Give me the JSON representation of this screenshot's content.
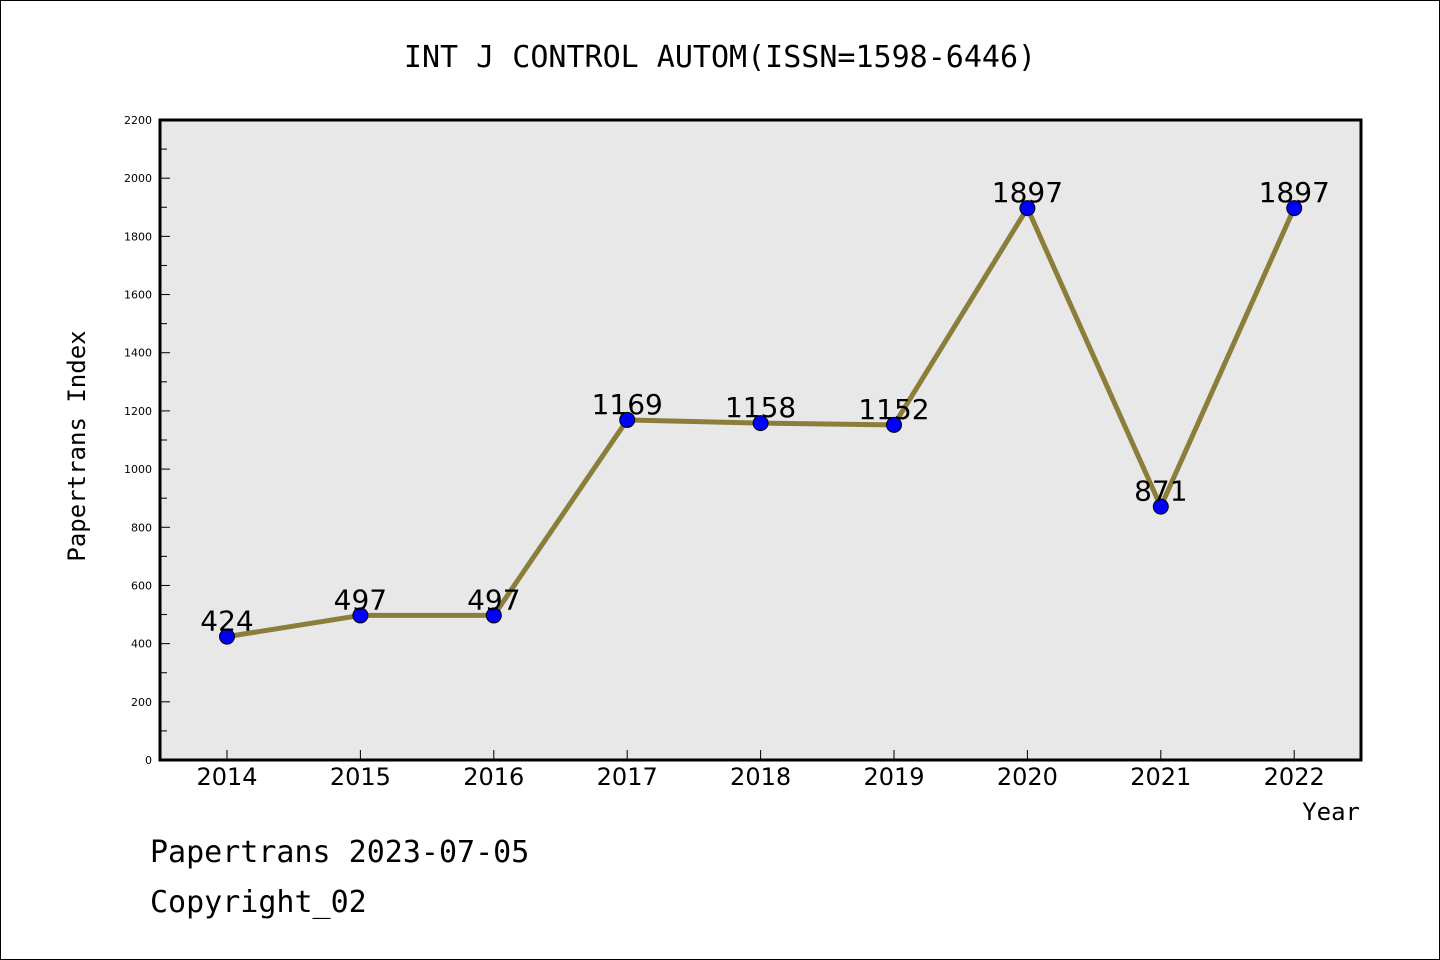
{
  "chart_data": {
    "type": "line",
    "title": "INT J CONTROL AUTOM(ISSN=1598-6446)",
    "xlabel": "Year",
    "ylabel": "Papertrans Index",
    "categories": [
      "2014",
      "2015",
      "2016",
      "2017",
      "2018",
      "2019",
      "2020",
      "2021",
      "2022"
    ],
    "values": [
      424,
      497,
      497,
      1169,
      1158,
      1152,
      1897,
      871,
      1897
    ],
    "data_labels": [
      "424",
      "497",
      "497",
      "1169",
      "1158",
      "1152",
      "1897",
      "871",
      "1897"
    ],
    "ylim": [
      0,
      2200
    ],
    "yticks": [
      "0",
      "200",
      "400",
      "600",
      "800",
      "1000",
      "1200",
      "1400",
      "1600",
      "1800",
      "2000",
      "2200"
    ],
    "yminor_step": 100,
    "grid": false,
    "line_color": "#8b7d3a",
    "marker_color": "#0000ff",
    "plot_background": "#e8e8e8"
  },
  "footer": {
    "line1": "Papertrans 2023-07-05",
    "line2": "Copyright_02"
  }
}
